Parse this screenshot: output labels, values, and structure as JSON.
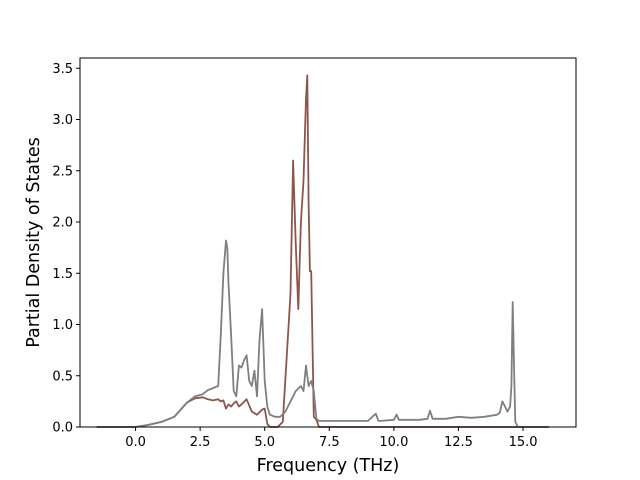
{
  "chart_data": {
    "type": "line",
    "title": "",
    "xlabel": "Frequency (THz)",
    "ylabel": "Partial Density of States",
    "xlim": [
      -2.15,
      17.05
    ],
    "ylim": [
      0.0,
      3.6
    ],
    "xticks": [
      0.0,
      2.5,
      5.0,
      7.5,
      10.0,
      12.5,
      15.0
    ],
    "xtick_labels": [
      "0.0",
      "2.5",
      "5.0",
      "7.5",
      "10.0",
      "12.5",
      "15.0"
    ],
    "yticks": [
      0.0,
      0.5,
      1.0,
      1.5,
      2.0,
      2.5,
      3.0,
      3.5
    ],
    "ytick_labels": [
      "0.0",
      "0.5",
      "1.0",
      "1.5",
      "2.0",
      "2.5",
      "3.0",
      "3.5"
    ],
    "grid": false,
    "legend": "none",
    "series": [
      {
        "color": "#8c564b",
        "x": [
          -1.5,
          0.0,
          0.5,
          1.0,
          1.5,
          2.0,
          2.3,
          2.6,
          2.8,
          3.0,
          3.2,
          3.3,
          3.4,
          3.5,
          3.6,
          3.7,
          3.8,
          3.9,
          4.0,
          4.1,
          4.3,
          4.5,
          4.7,
          4.9,
          5.0,
          5.1,
          5.2,
          5.5,
          5.7,
          6.0,
          6.1,
          6.2,
          6.3,
          6.4,
          6.5,
          6.6,
          6.65,
          6.7,
          6.75,
          6.8,
          6.9,
          7.0,
          7.1,
          7.2,
          7.3,
          7.5,
          8.0,
          9.0,
          10.0,
          11.0,
          12.0,
          13.0,
          14.0,
          14.3,
          14.5,
          14.6,
          14.7,
          14.8,
          16.0
        ],
        "y": [
          0.0,
          0.0,
          0.02,
          0.05,
          0.1,
          0.24,
          0.28,
          0.29,
          0.27,
          0.26,
          0.27,
          0.25,
          0.26,
          0.18,
          0.22,
          0.2,
          0.23,
          0.25,
          0.2,
          0.22,
          0.27,
          0.15,
          0.12,
          0.17,
          0.18,
          0.03,
          0.0,
          0.0,
          0.05,
          1.3,
          2.6,
          1.8,
          1.15,
          2.0,
          2.4,
          3.2,
          3.43,
          2.2,
          1.52,
          1.52,
          0.1,
          0.07,
          0.0,
          0.0,
          0.0,
          0.0,
          0.0,
          0.0,
          0.0,
          0.0,
          0.0,
          0.0,
          0.0,
          0.0,
          0.0,
          0.0,
          0.0,
          0.0,
          0.0
        ]
      },
      {
        "color": "#7f7f7f",
        "x": [
          -1.5,
          0.0,
          0.5,
          1.0,
          1.5,
          2.0,
          2.3,
          2.6,
          2.8,
          3.0,
          3.2,
          3.3,
          3.4,
          3.5,
          3.55,
          3.6,
          3.7,
          3.8,
          3.9,
          4.0,
          4.1,
          4.2,
          4.3,
          4.4,
          4.5,
          4.6,
          4.7,
          4.8,
          4.9,
          4.95,
          5.0,
          5.1,
          5.2,
          5.4,
          5.6,
          5.8,
          6.0,
          6.2,
          6.4,
          6.5,
          6.6,
          6.7,
          6.8,
          6.9,
          7.0,
          7.1,
          7.2,
          7.5,
          8.0,
          9.0,
          9.3,
          9.4,
          9.5,
          10.0,
          10.1,
          10.2,
          11.0,
          11.3,
          11.4,
          11.5,
          12.0,
          12.5,
          13.0,
          13.5,
          14.0,
          14.1,
          14.2,
          14.4,
          14.5,
          14.55,
          14.6,
          14.65,
          14.7,
          14.8,
          16.0
        ],
        "y": [
          0.0,
          0.0,
          0.02,
          0.05,
          0.1,
          0.24,
          0.3,
          0.32,
          0.36,
          0.38,
          0.4,
          0.9,
          1.5,
          1.82,
          1.75,
          1.4,
          0.9,
          0.35,
          0.3,
          0.6,
          0.58,
          0.65,
          0.7,
          0.45,
          0.4,
          0.55,
          0.3,
          0.85,
          1.15,
          0.8,
          0.45,
          0.2,
          0.12,
          0.1,
          0.1,
          0.15,
          0.25,
          0.35,
          0.4,
          0.35,
          0.6,
          0.4,
          0.45,
          0.35,
          0.08,
          0.06,
          0.06,
          0.06,
          0.06,
          0.06,
          0.13,
          0.06,
          0.06,
          0.07,
          0.12,
          0.07,
          0.07,
          0.08,
          0.16,
          0.08,
          0.08,
          0.1,
          0.09,
          0.1,
          0.12,
          0.14,
          0.25,
          0.15,
          0.2,
          0.4,
          1.22,
          0.6,
          0.05,
          0.0,
          0.0
        ]
      }
    ]
  }
}
